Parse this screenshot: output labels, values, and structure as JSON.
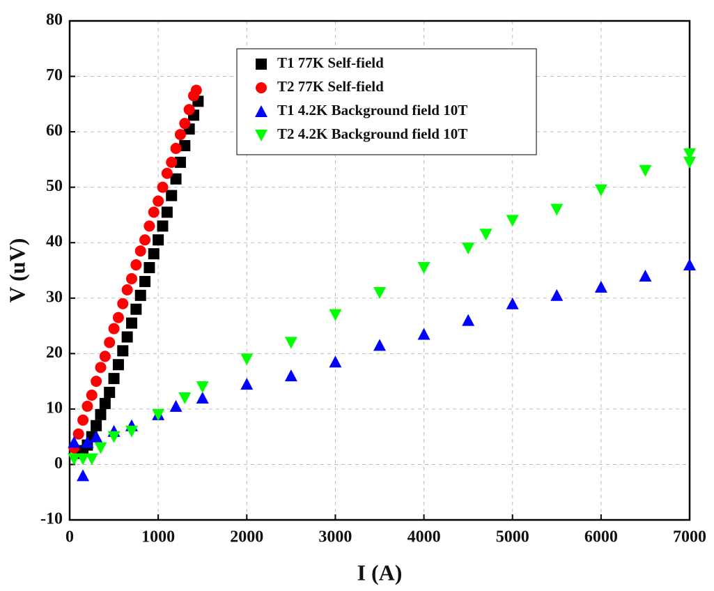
{
  "chart_data": {
    "type": "scatter",
    "xlabel": "I (A)",
    "ylabel": "V (uV)",
    "xlim": [
      0,
      7000
    ],
    "ylim": [
      -10,
      80
    ],
    "xticks": [
      0,
      1000,
      2000,
      3000,
      4000,
      5000,
      6000,
      7000
    ],
    "yticks": [
      -10,
      0,
      10,
      20,
      30,
      40,
      50,
      60,
      70,
      80
    ],
    "grid": true,
    "legend": "upper center",
    "series": [
      {
        "name": "T1 77K Self-field",
        "color": "#000000",
        "marker": "square",
        "x": [
          100,
          150,
          200,
          250,
          300,
          350,
          400,
          450,
          500,
          550,
          600,
          650,
          700,
          750,
          800,
          850,
          900,
          950,
          1000,
          1050,
          1100,
          1150,
          1200,
          1250,
          1300,
          1350,
          1400,
          1450
        ],
        "values": [
          2,
          2.5,
          3.5,
          5,
          7,
          9,
          11,
          13,
          15.5,
          18,
          20.5,
          23,
          25.5,
          28,
          30.5,
          33,
          35.5,
          38,
          40.5,
          43,
          45.5,
          48.5,
          51.5,
          54.5,
          57.5,
          60.5,
          63,
          65.5
        ]
      },
      {
        "name": "T2 77K Self-field",
        "color": "#ff0000",
        "marker": "circle",
        "x": [
          50,
          100,
          150,
          200,
          250,
          300,
          350,
          400,
          450,
          500,
          550,
          600,
          650,
          700,
          750,
          800,
          850,
          900,
          950,
          1000,
          1050,
          1100,
          1150,
          1200,
          1250,
          1300,
          1350,
          1400,
          1430
        ],
        "values": [
          3,
          5.5,
          8,
          10.5,
          12.5,
          15,
          17.5,
          19.5,
          22,
          24.5,
          26.5,
          29,
          31.5,
          33.5,
          36,
          38.5,
          40.5,
          43,
          45.5,
          47.5,
          50,
          52.5,
          54.5,
          57,
          59.5,
          61.5,
          64,
          66.5,
          67.5
        ]
      },
      {
        "name": "T1 4.2K Background field 10T",
        "color": "#0000ff",
        "marker": "triangle-up",
        "x": [
          50,
          150,
          200,
          300,
          500,
          700,
          1000,
          1200,
          1500,
          2000,
          2500,
          3000,
          3500,
          4000,
          4500,
          5000,
          5500,
          6000,
          6500,
          7000
        ],
        "values": [
          4,
          -2,
          4,
          5,
          6,
          7,
          9,
          10.5,
          12,
          14.5,
          16,
          18.5,
          21.5,
          23.5,
          26,
          29,
          30.5,
          32,
          34,
          36
        ]
      },
      {
        "name": "T2 4.2K Background field 10T",
        "color": "#00ff00",
        "marker": "triangle-down",
        "x": [
          50,
          150,
          250,
          350,
          500,
          700,
          1000,
          1300,
          1500,
          2000,
          2500,
          3000,
          3500,
          4000,
          4500,
          4700,
          5000,
          5500,
          6000,
          6500,
          7000,
          7000
        ],
        "values": [
          1,
          1,
          1,
          3,
          5,
          6,
          9,
          12,
          14,
          19,
          22,
          27,
          31,
          35.5,
          39,
          41.5,
          44,
          46,
          49.5,
          53,
          56,
          54.5
        ]
      }
    ]
  }
}
